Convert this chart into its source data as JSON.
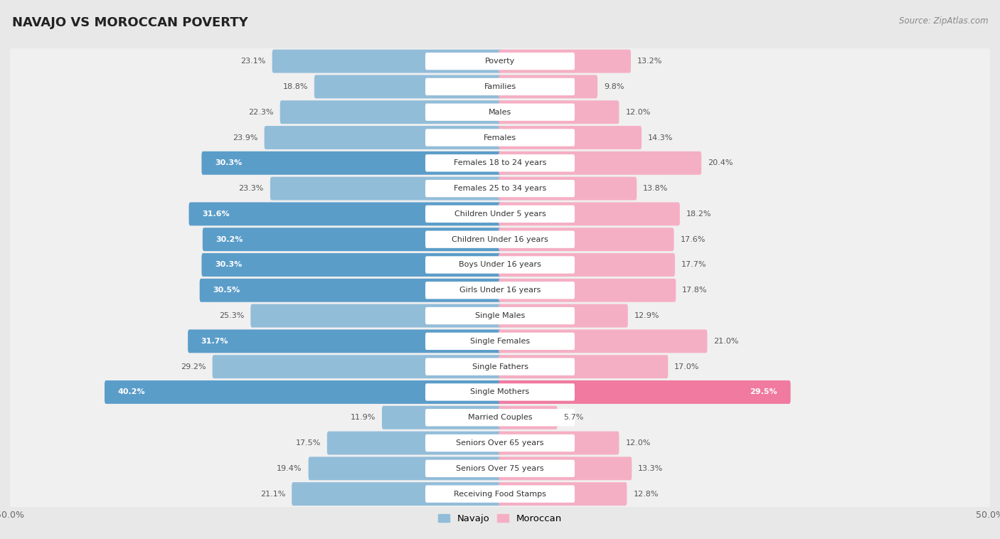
{
  "title": "NAVAJO VS MOROCCAN POVERTY",
  "source": "Source: ZipAtlas.com",
  "categories": [
    "Poverty",
    "Families",
    "Males",
    "Females",
    "Females 18 to 24 years",
    "Females 25 to 34 years",
    "Children Under 5 years",
    "Children Under 16 years",
    "Boys Under 16 years",
    "Girls Under 16 years",
    "Single Males",
    "Single Females",
    "Single Fathers",
    "Single Mothers",
    "Married Couples",
    "Seniors Over 65 years",
    "Seniors Over 75 years",
    "Receiving Food Stamps"
  ],
  "navajo": [
    23.1,
    18.8,
    22.3,
    23.9,
    30.3,
    23.3,
    31.6,
    30.2,
    30.3,
    30.5,
    25.3,
    31.7,
    29.2,
    40.2,
    11.9,
    17.5,
    19.4,
    21.1
  ],
  "moroccan": [
    13.2,
    9.8,
    12.0,
    14.3,
    20.4,
    13.8,
    18.2,
    17.6,
    17.7,
    17.8,
    12.9,
    21.0,
    17.0,
    29.5,
    5.7,
    12.0,
    13.3,
    12.8
  ],
  "navajo_color": "#92bdd9",
  "navajo_color_highlight": "#5b9dc9",
  "moroccan_color": "#f5afc4",
  "moroccan_color_highlight": "#f07aa0",
  "highlight_navajo": [
    4,
    6,
    7,
    8,
    9,
    11,
    13
  ],
  "highlight_moroccan": [
    13
  ],
  "axis_limit": 50.0,
  "page_bg": "#e8e8e8",
  "row_bg": "#f5f5f5",
  "row_bg_alt": "#ffffff",
  "label_bg": "#ffffff",
  "legend_navajo": "Navajo",
  "legend_moroccan": "Moroccan"
}
